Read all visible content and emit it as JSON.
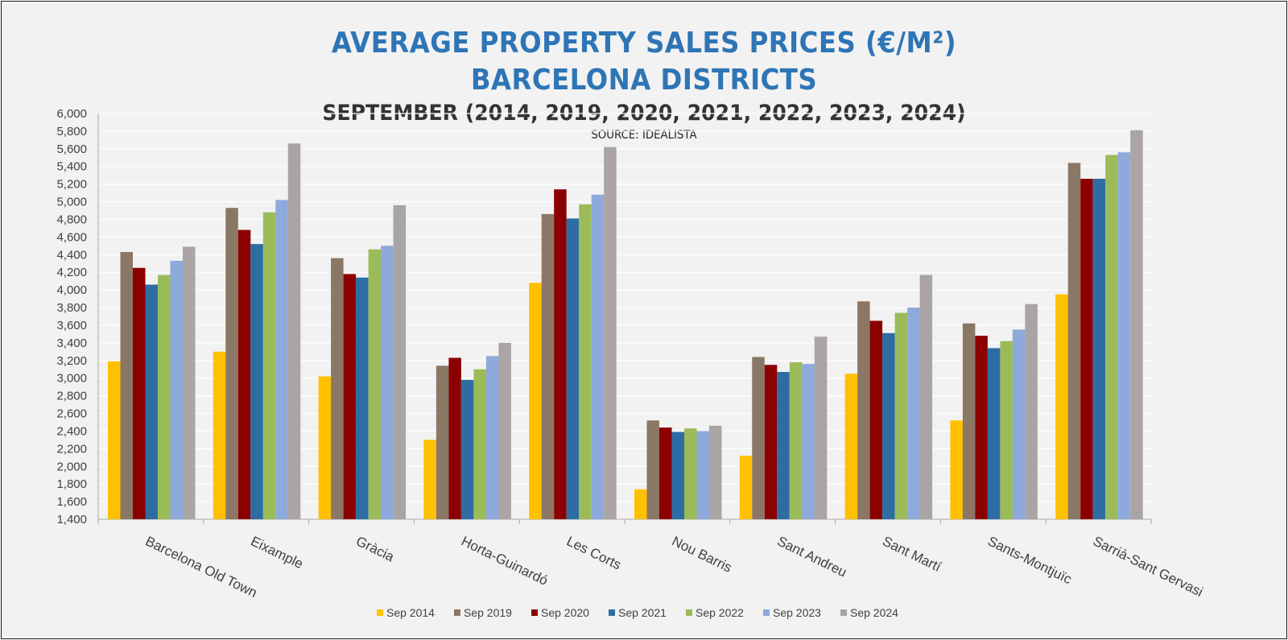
{
  "title_line1": "AVERAGE PROPERTY SALES PRICES (€/M²)",
  "title_line2": "BARCELONA DISTRICTS",
  "subtitle": "SEPTEMBER (2014, 2019, 2020, 2021, 2022, 2023, 2024)",
  "source": "SOURCE: IDEALISTA",
  "chart_data": {
    "type": "bar",
    "categories": [
      "Barcelona Old Town",
      "Eixample",
      "Gràcia",
      "Horta-Guinardó",
      "Les Corts",
      "Nou Barris",
      "Sant Andreu",
      "Sant Martí",
      "Sants-Montjuïc",
      "Sarrià-Sant Gervasi"
    ],
    "series": [
      {
        "name": "Sep 2014",
        "color": "#ffc000",
        "values": [
          3190,
          3300,
          3020,
          2300,
          4080,
          1740,
          2120,
          3050,
          2520,
          3950
        ]
      },
      {
        "name": "Sep 2019",
        "color": "#8b7765",
        "values": [
          4430,
          4930,
          4360,
          3140,
          4860,
          2520,
          3240,
          3870,
          3620,
          5440
        ]
      },
      {
        "name": "Sep 2020",
        "color": "#8b0000",
        "values": [
          4250,
          4680,
          4180,
          3230,
          5140,
          2440,
          3150,
          3650,
          3480,
          5260
        ]
      },
      {
        "name": "Sep 2021",
        "color": "#2e6da4",
        "values": [
          4060,
          4520,
          4140,
          2980,
          4810,
          2390,
          3070,
          3510,
          3340,
          5260
        ]
      },
      {
        "name": "Sep 2022",
        "color": "#9bbb59",
        "values": [
          4170,
          4880,
          4460,
          3100,
          4970,
          2430,
          3180,
          3740,
          3420,
          5530
        ]
      },
      {
        "name": "Sep 2023",
        "color": "#8ea9db",
        "values": [
          4330,
          5020,
          4500,
          3250,
          5080,
          2400,
          3160,
          3800,
          3550,
          5560
        ]
      },
      {
        "name": "Sep 2024",
        "color": "#aaa4a4",
        "values": [
          4490,
          5660,
          4960,
          3400,
          5620,
          2460,
          3470,
          4170,
          3840,
          5810
        ]
      }
    ],
    "ylim": [
      1400,
      6000
    ],
    "ytick_step": 200,
    "grid": true,
    "legend_position": "bottom"
  }
}
